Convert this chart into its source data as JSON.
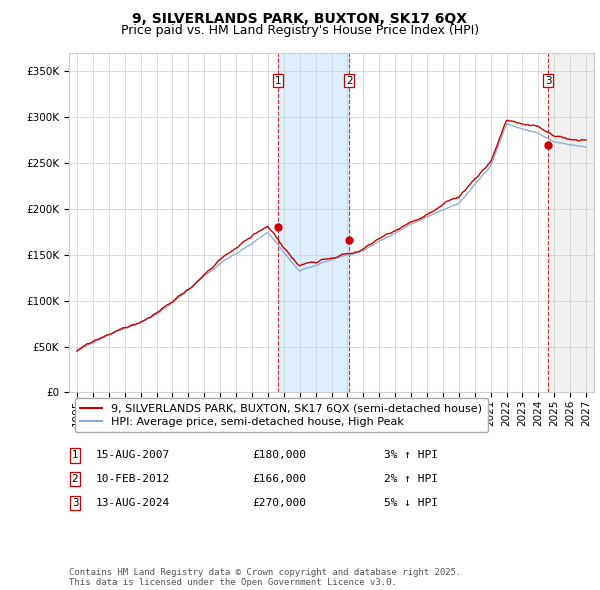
{
  "title": "9, SILVERLANDS PARK, BUXTON, SK17 6QX",
  "subtitle": "Price paid vs. HM Land Registry's House Price Index (HPI)",
  "ylabel_ticks": [
    "£0",
    "£50K",
    "£100K",
    "£150K",
    "£200K",
    "£250K",
    "£300K",
    "£350K"
  ],
  "ytick_vals": [
    0,
    50000,
    100000,
    150000,
    200000,
    250000,
    300000,
    350000
  ],
  "ylim": [
    0,
    370000
  ],
  "xlim_start": 1994.5,
  "xlim_end": 2027.5,
  "x_tick_years": [
    1995,
    1996,
    1997,
    1998,
    1999,
    2000,
    2001,
    2002,
    2003,
    2004,
    2005,
    2006,
    2007,
    2008,
    2009,
    2010,
    2011,
    2012,
    2013,
    2014,
    2015,
    2016,
    2017,
    2018,
    2019,
    2020,
    2021,
    2022,
    2023,
    2024,
    2025,
    2026,
    2027
  ],
  "sale_dates": [
    "15-AUG-2007",
    "10-FEB-2012",
    "13-AUG-2024"
  ],
  "sale_prices": [
    180000,
    166000,
    270000
  ],
  "sale_years": [
    2007.62,
    2012.11,
    2024.62
  ],
  "hpi_pcts": [
    "3%",
    "2%",
    "5%"
  ],
  "hpi_dirs": [
    "↑",
    "↑",
    "↓"
  ],
  "legend_red": "9, SILVERLANDS PARK, BUXTON, SK17 6QX (semi-detached house)",
  "legend_blue": "HPI: Average price, semi-detached house, High Peak",
  "footnote": "Contains HM Land Registry data © Crown copyright and database right 2025.\nThis data is licensed under the Open Government Licence v3.0.",
  "red_color": "#cc0000",
  "blue_color": "#88aacc",
  "shade_color": "#ddeeff",
  "hatch_color": "#bbbbbb",
  "bg_color": "#ffffff",
  "grid_color": "#cccccc",
  "shade_between": [
    2007.62,
    2012.11
  ],
  "hatch_from": 2024.62,
  "title_fontsize": 10,
  "subtitle_fontsize": 9,
  "tick_fontsize": 7.5,
  "legend_fontsize": 8,
  "footnote_fontsize": 6.5
}
